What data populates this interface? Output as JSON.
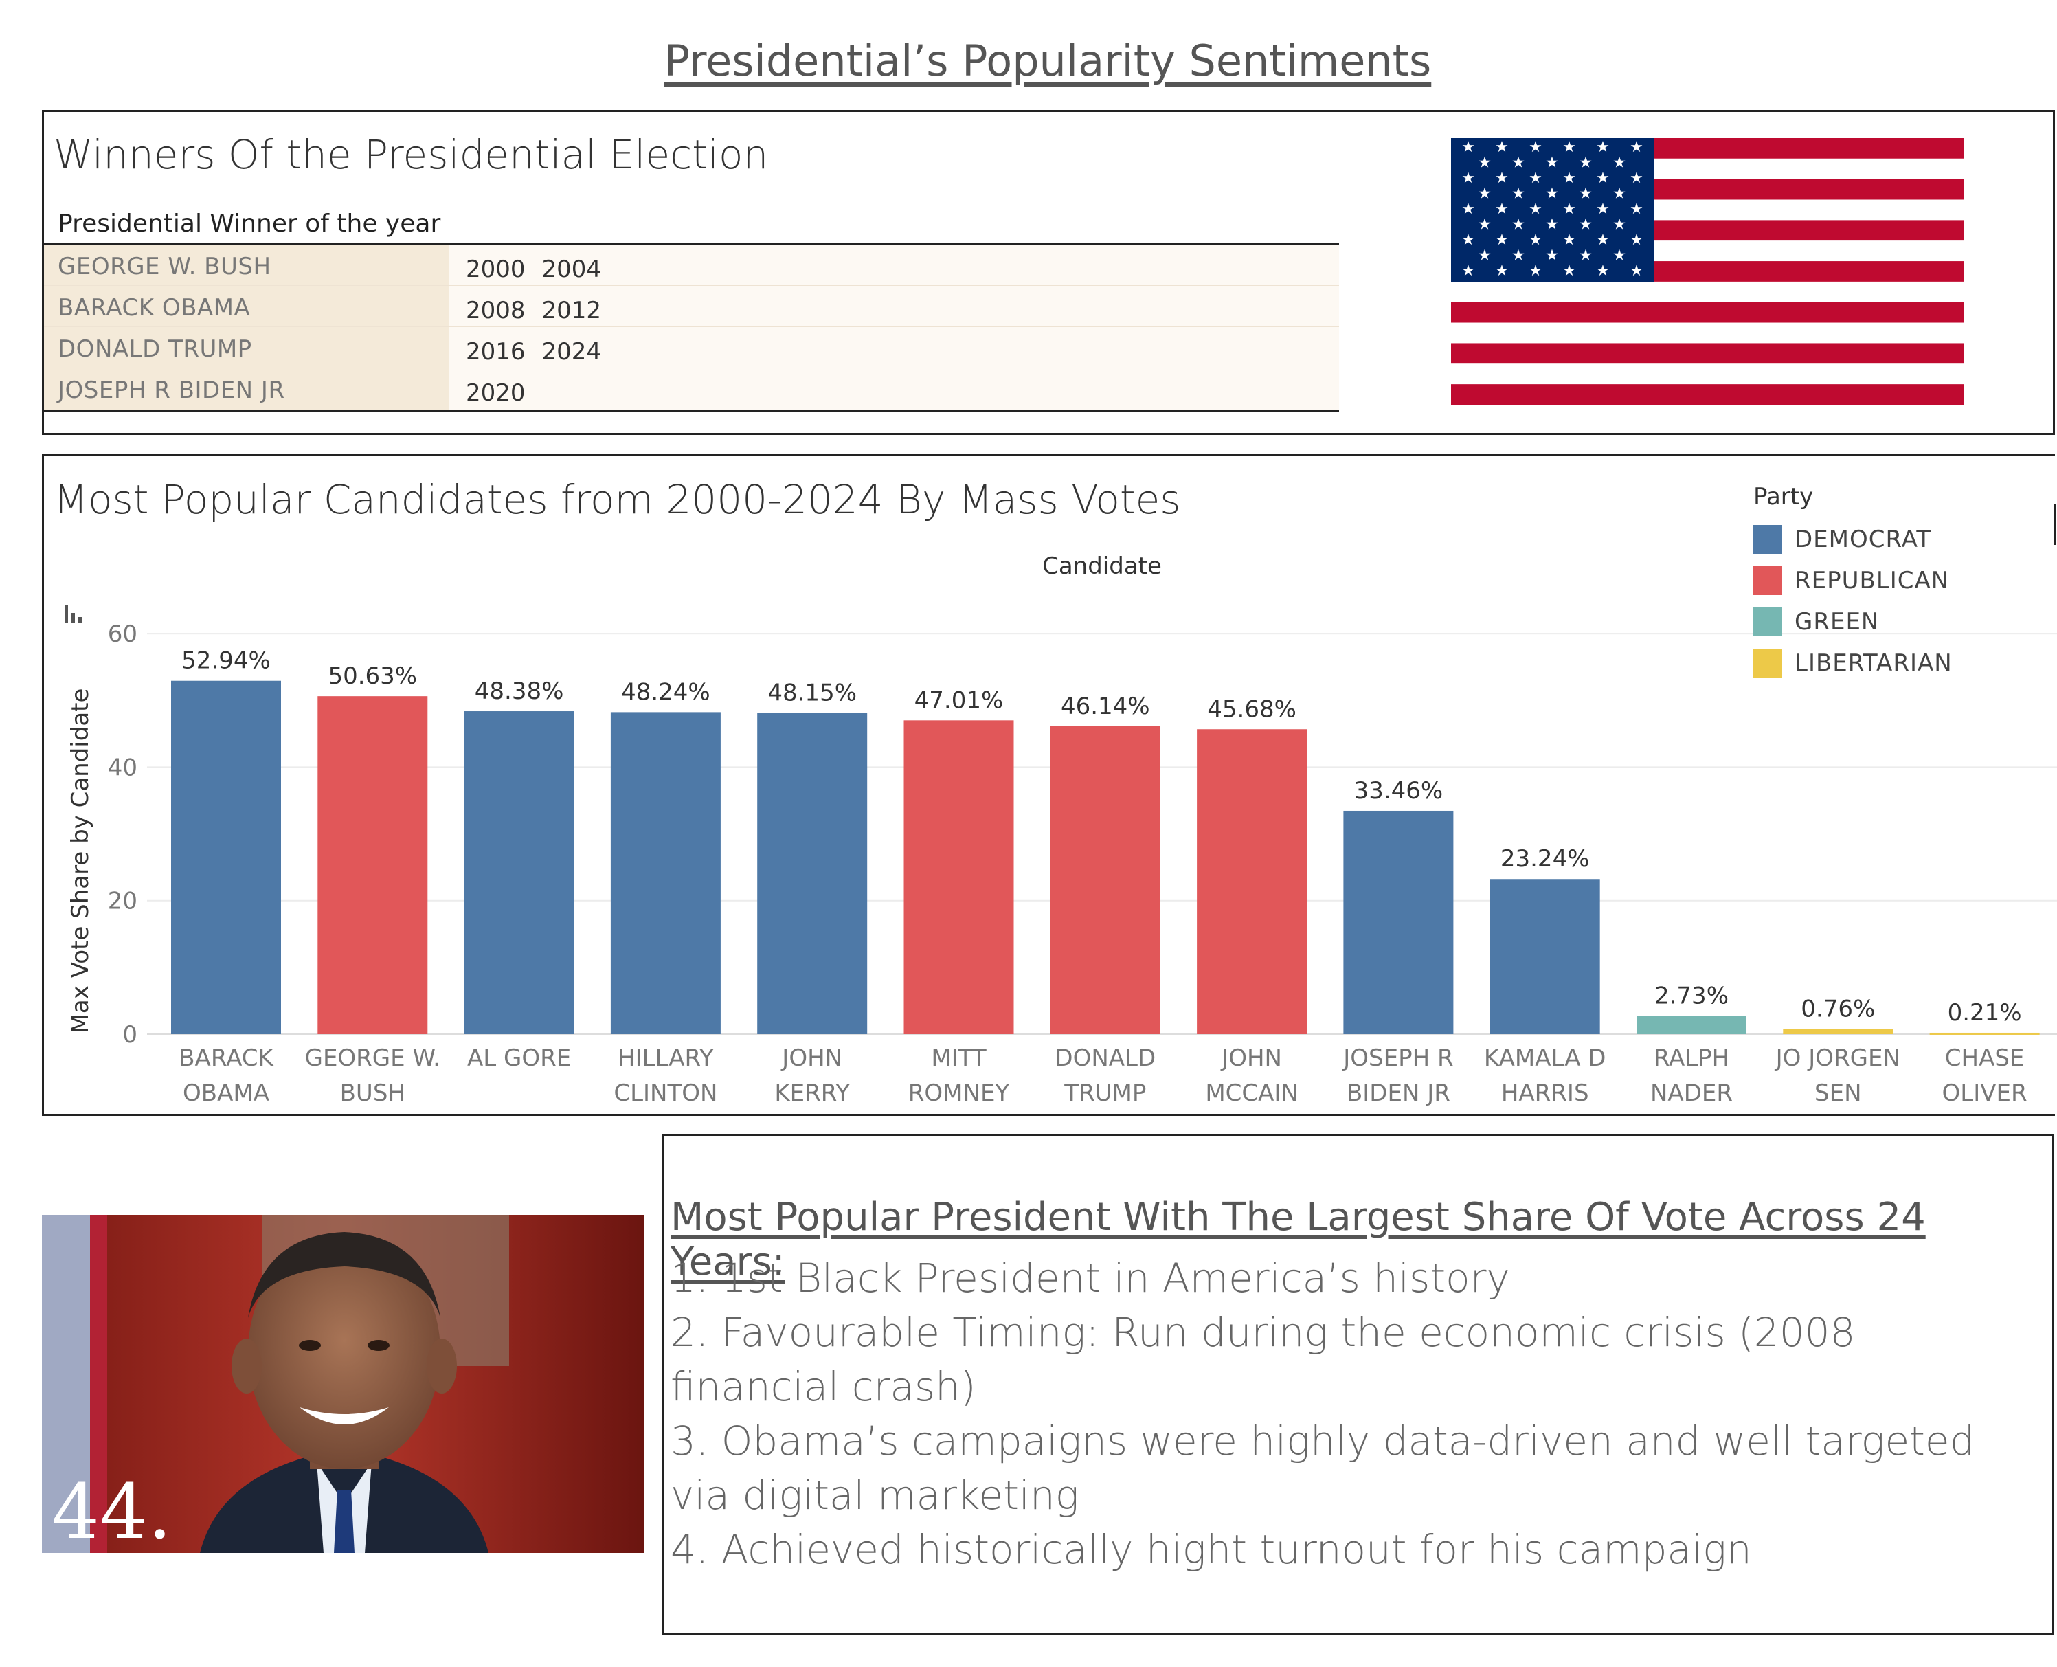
{
  "dashboard": {
    "title": "Presidential’s Popularity Sentiments"
  },
  "winners": {
    "heading": "Winners Of the Presidential Election",
    "caption": "Presidential Winner of the year",
    "rows": [
      {
        "name": "GEORGE W. BUSH",
        "years": [
          "2000",
          "2004"
        ]
      },
      {
        "name": "BARACK OBAMA",
        "years": [
          "2008",
          "2012"
        ]
      },
      {
        "name": "DONALD TRUMP",
        "years": [
          "2016",
          "2024"
        ]
      },
      {
        "name": "JOSEPH R BIDEN JR",
        "years": [
          "2020"
        ]
      }
    ]
  },
  "colors": {
    "DEMOCRAT": "#4e79a7",
    "REPUBLICAN": "#e15759",
    "GREEN": "#76b7b2",
    "LIBERTARIAN": "#edc948",
    "flag_red": "#bf0a30",
    "flag_blue": "#002868"
  },
  "chart_data": {
    "type": "bar",
    "title": "Most Popular Candidates from 2000-2024 By Mass Votes",
    "xlabel": "Candidate",
    "ylabel": "Max Vote Share by Candidate",
    "ylim": [
      0,
      60
    ],
    "yticks": [
      "60",
      "40",
      "20",
      "0"
    ],
    "grid": true,
    "legend_title": "Party",
    "legend_position": "top-right",
    "legend": [
      "DEMOCRAT",
      "REPUBLICAN",
      "GREEN",
      "LIBERTARIAN"
    ],
    "categories": [
      [
        "BARACK",
        "OBAMA"
      ],
      [
        "GEORGE W.",
        "BUSH"
      ],
      [
        "AL GORE",
        ""
      ],
      [
        "HILLARY",
        "CLINTON"
      ],
      [
        "JOHN",
        "KERRY"
      ],
      [
        "MITT",
        "ROMNEY"
      ],
      [
        "DONALD",
        "TRUMP"
      ],
      [
        "JOHN",
        "MCCAIN"
      ],
      [
        "JOSEPH R",
        "BIDEN JR"
      ],
      [
        "KAMALA D",
        "HARRIS"
      ],
      [
        "RALPH",
        "NADER"
      ],
      [
        "JO JORGEN",
        "SEN"
      ],
      [
        "CHASE",
        "OLIVER"
      ]
    ],
    "values": [
      52.94,
      50.63,
      48.38,
      48.24,
      48.15,
      47.01,
      46.14,
      45.68,
      33.46,
      23.24,
      2.73,
      0.76,
      0.21
    ],
    "labels": [
      "52.94%",
      "50.63%",
      "48.38%",
      "48.24%",
      "48.15%",
      "47.01%",
      "46.14%",
      "45.68%",
      "33.46%",
      "23.24%",
      "2.73%",
      "0.76%",
      "0.21%"
    ],
    "party": [
      "DEMOCRAT",
      "REPUBLICAN",
      "DEMOCRAT",
      "DEMOCRAT",
      "DEMOCRAT",
      "REPUBLICAN",
      "REPUBLICAN",
      "REPUBLICAN",
      "DEMOCRAT",
      "DEMOCRAT",
      "GREEN",
      "LIBERTARIAN",
      "LIBERTARIAN"
    ]
  },
  "photo": {
    "caption": "44."
  },
  "notes": {
    "heading": "Most Popular President With The Largest Share Of Vote Across 24 Years:",
    "items": [
      "1. 1st Black President in America’s history",
      "2. Favourable Timing:  Run during the economic crisis (2008 financial crash)",
      "3. Obama’s campaigns were highly data-driven and well targeted via digital marketing",
      "4. Achieved historically hight turnout for his campaign"
    ]
  }
}
